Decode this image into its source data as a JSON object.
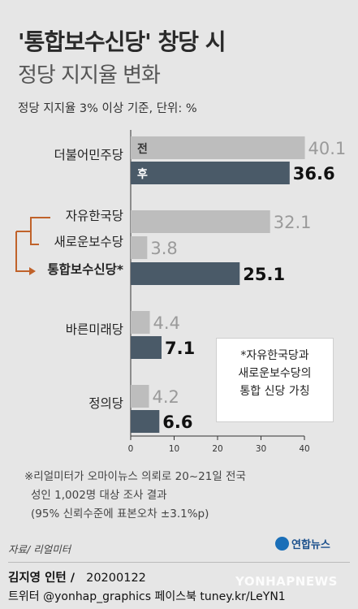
{
  "header": {
    "title": "'통합보수신당' 창당 시",
    "subtitle": "정당 지지율 변화",
    "unit_note": "정당 지지율 3% 이상 기준,  단위: %"
  },
  "chart_data": {
    "type": "bar",
    "orientation": "horizontal",
    "legend_labels": {
      "before": "전",
      "after": "후"
    },
    "colors": {
      "before": "#bdbdbd",
      "after": "#4a5a68",
      "bracket": "#c0622a"
    },
    "xlim": [
      0,
      40
    ],
    "xticks": [
      0,
      10,
      20,
      30,
      40
    ],
    "groups": [
      {
        "name": "더불어민주당",
        "bars": [
          {
            "type": "before",
            "value": 40.1,
            "label": "40.1"
          },
          {
            "type": "after",
            "value": 36.6,
            "label": "36.6"
          }
        ]
      },
      {
        "name": "자유한국당",
        "bars": [
          {
            "type": "before",
            "value": 32.1,
            "label": "32.1"
          }
        ]
      },
      {
        "name": "새로운보수당",
        "bars": [
          {
            "type": "before",
            "value": 3.8,
            "label": "3.8"
          }
        ]
      },
      {
        "name": "통합보수신당*",
        "bold": true,
        "bars": [
          {
            "type": "after",
            "value": 25.1,
            "label": "25.1"
          }
        ]
      },
      {
        "name": "바른미래당",
        "bars": [
          {
            "type": "before",
            "value": 4.4,
            "label": "4.4"
          },
          {
            "type": "after",
            "value": 7.1,
            "label": "7.1"
          }
        ]
      },
      {
        "name": "정의당",
        "bars": [
          {
            "type": "before",
            "value": 4.2,
            "label": "4.2"
          },
          {
            "type": "after",
            "value": 6.6,
            "label": "6.6"
          }
        ]
      }
    ]
  },
  "note_box": {
    "line1": "*자유한국당과",
    "line2": "새로운보수당의",
    "line3": "통합 신당 가칭"
  },
  "survey_note": {
    "line1": "※리얼미터가 오마이뉴스 의뢰로 20~21일 전국",
    "line2": "성인 1,002명 대상 조사 결과",
    "line3": "(95% 신뢰수준에 표본오차 ±3.1%p)"
  },
  "footer": {
    "source": "자료/ 리얼미터",
    "logo_text": "연합뉴스",
    "author": "김지영 인턴 /",
    "date": "20200122",
    "social": "트위터 @yonhap_graphics  페이스북 tuney.kr/LeYN1",
    "watermark": "YONHAPNEWS"
  }
}
